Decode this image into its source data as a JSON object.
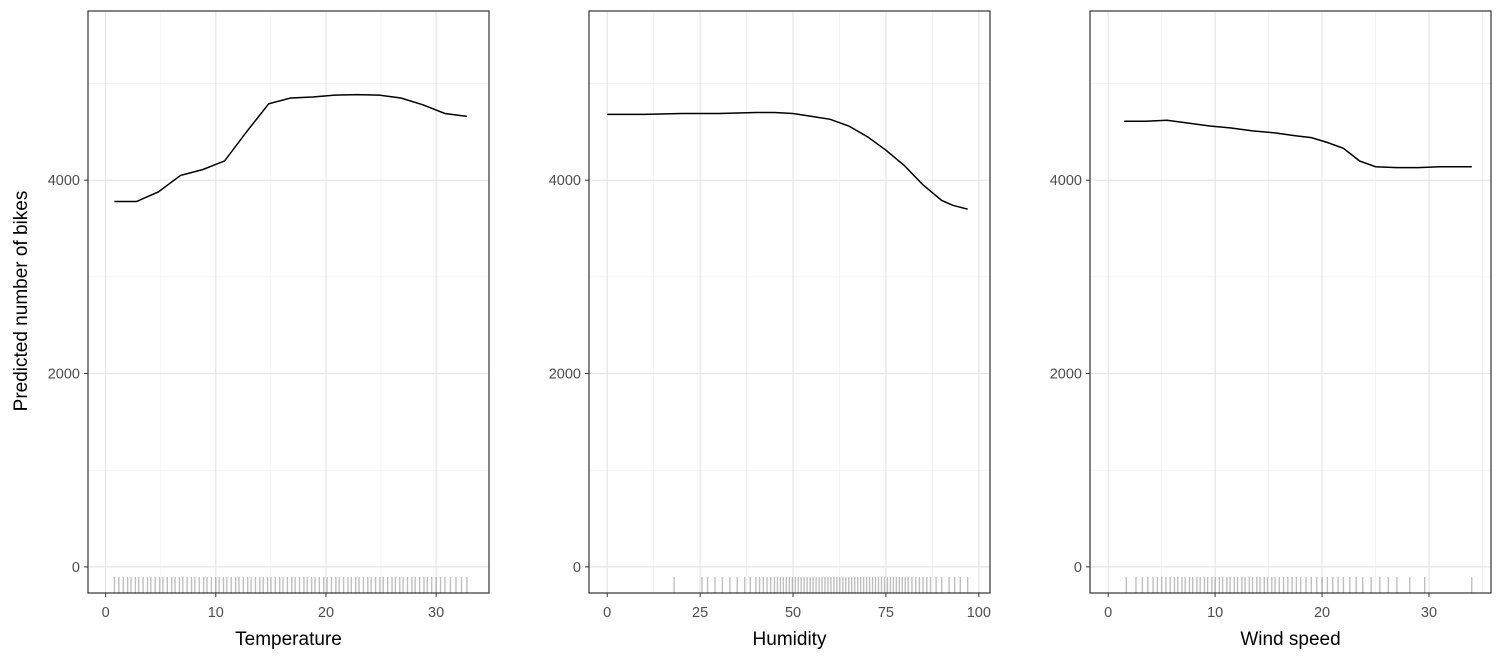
{
  "figure": {
    "ylabel": "Predicted number of bikes"
  },
  "chart_data": [
    {
      "type": "line",
      "xlabel": "Temperature",
      "xlim": [
        -1.6,
        34.8
      ],
      "ylim": [
        -270,
        5750
      ],
      "xticks": [
        0,
        10,
        20,
        30
      ],
      "yticks": [
        0,
        2000,
        4000
      ],
      "grid": true,
      "x": [
        0.8,
        2.8,
        4.8,
        6.8,
        8.8,
        10.8,
        12.8,
        14.8,
        16.8,
        18.8,
        20.8,
        22.8,
        24.8,
        26.8,
        28.8,
        30.8,
        32.8
      ],
      "values": [
        3780,
        3780,
        3880,
        4050,
        4110,
        4200,
        4500,
        4790,
        4850,
        4860,
        4880,
        4885,
        4880,
        4850,
        4780,
        4690,
        4660
      ],
      "rug": [
        0.8,
        1.2,
        1.6,
        2.0,
        2.3,
        2.7,
        3.0,
        3.4,
        3.8,
        4.1,
        4.5,
        4.9,
        5.2,
        5.6,
        6.0,
        6.3,
        6.7,
        7.0,
        7.4,
        7.8,
        8.1,
        8.5,
        8.9,
        9.2,
        9.6,
        10.0,
        10.3,
        10.7,
        11.0,
        11.4,
        11.8,
        12.1,
        12.5,
        12.9,
        13.2,
        13.6,
        14.0,
        14.3,
        14.7,
        15.0,
        15.4,
        15.8,
        16.1,
        16.5,
        16.9,
        17.2,
        17.6,
        18.0,
        18.3,
        18.7,
        19.0,
        19.4,
        19.8,
        20.1,
        20.5,
        20.9,
        21.2,
        21.6,
        22.0,
        22.3,
        22.7,
        23.0,
        23.4,
        23.8,
        24.1,
        24.5,
        24.9,
        25.2,
        25.6,
        26.0,
        26.3,
        26.7,
        27.0,
        27.4,
        27.8,
        28.1,
        28.5,
        28.9,
        29.2,
        29.6,
        30.0,
        30.4,
        30.8,
        31.3,
        31.8,
        32.3,
        32.8
      ]
    },
    {
      "type": "line",
      "xlabel": "Humidity",
      "xlim": [
        -4.9,
        103.0
      ],
      "ylim": [
        -270,
        5750
      ],
      "xticks": [
        0,
        25,
        50,
        75,
        100
      ],
      "yticks": [
        0,
        2000,
        4000
      ],
      "grid": true,
      "x": [
        0,
        10,
        20,
        30,
        40,
        45,
        50,
        55,
        60,
        65,
        70,
        75,
        80,
        85,
        90,
        93,
        97
      ],
      "values": [
        4680,
        4680,
        4690,
        4690,
        4700,
        4700,
        4690,
        4660,
        4630,
        4560,
        4450,
        4310,
        4150,
        3950,
        3790,
        3740,
        3700
      ],
      "rug": [
        18.0,
        25.5,
        27.0,
        29.0,
        31.0,
        33.0,
        35.0,
        37.0,
        38.5,
        40.0,
        41.0,
        42.0,
        43.0,
        44.0,
        45.0,
        45.8,
        46.6,
        47.4,
        48.2,
        49.0,
        49.8,
        50.6,
        51.4,
        52.2,
        53.0,
        53.8,
        54.6,
        55.4,
        56.2,
        57.0,
        57.8,
        58.6,
        59.4,
        60.2,
        61.0,
        61.8,
        62.6,
        63.4,
        64.2,
        65.0,
        65.8,
        66.6,
        67.4,
        68.2,
        69.0,
        69.8,
        70.6,
        71.4,
        72.2,
        73.0,
        73.8,
        74.6,
        75.4,
        76.2,
        77.0,
        77.8,
        78.6,
        79.4,
        80.2,
        81.0,
        82.0,
        83.0,
        84.0,
        85.0,
        86.0,
        87.0,
        88.5,
        90.0,
        92.0,
        93.5,
        95.0,
        97.0
      ]
    },
    {
      "type": "line",
      "xlabel": "Wind speed",
      "xlim": [
        -1.7,
        35.8
      ],
      "ylim": [
        -270,
        5750
      ],
      "xticks": [
        0,
        10,
        20,
        30
      ],
      "yticks": [
        0,
        2000,
        4000
      ],
      "grid": true,
      "x": [
        1.5,
        3.5,
        5.5,
        7.5,
        9.5,
        11.5,
        13.5,
        15.5,
        17.5,
        19.0,
        20.5,
        22.0,
        23.5,
        25.0,
        27.0,
        29.0,
        31.0,
        34.0
      ],
      "values": [
        4610,
        4610,
        4620,
        4590,
        4560,
        4540,
        4510,
        4490,
        4460,
        4440,
        4390,
        4330,
        4200,
        4140,
        4130,
        4130,
        4140,
        4140
      ],
      "rug": [
        1.7,
        2.6,
        3.2,
        3.7,
        4.2,
        4.6,
        5.0,
        5.4,
        5.8,
        6.2,
        6.5,
        6.9,
        7.2,
        7.6,
        7.9,
        8.3,
        8.6,
        9.0,
        9.3,
        9.7,
        10.0,
        10.4,
        10.7,
        11.1,
        11.4,
        11.8,
        12.1,
        12.5,
        12.8,
        13.2,
        13.5,
        13.9,
        14.2,
        14.6,
        14.9,
        15.3,
        15.6,
        16.0,
        16.4,
        16.8,
        17.2,
        17.6,
        18.0,
        18.5,
        19.0,
        19.5,
        20.0,
        20.5,
        21.0,
        21.5,
        22.0,
        22.6,
        23.2,
        23.8,
        24.6,
        25.4,
        26.2,
        27.0,
        28.2,
        29.6,
        34.0
      ]
    }
  ]
}
